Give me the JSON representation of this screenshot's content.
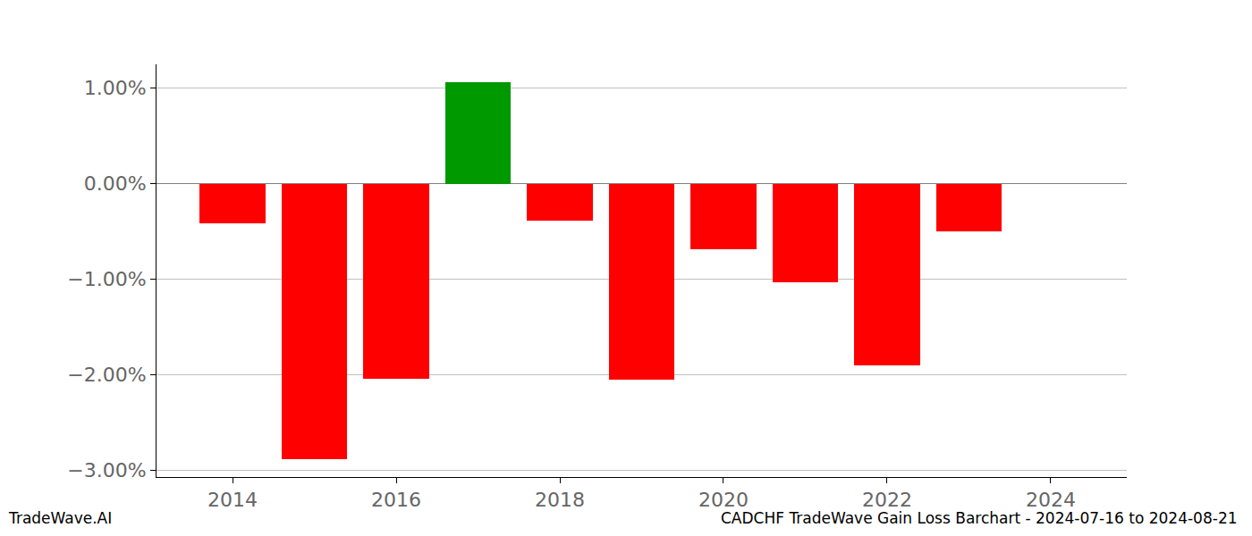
{
  "chart_data": {
    "type": "bar",
    "title": "CADCHF TradeWave Gain Loss Barchart - 2024-07-16 to 2024-08-21",
    "annotations": [
      "TradeWave.AI"
    ],
    "x": [
      2014,
      2015,
      2016,
      2017,
      2018,
      2019,
      2020,
      2021,
      2022,
      2023
    ],
    "values": [
      -0.41,
      -2.88,
      -2.04,
      1.06,
      -0.39,
      -2.05,
      -0.69,
      -1.03,
      -1.9,
      -0.5
    ],
    "colors": [
      "#ff0000",
      "#ff0000",
      "#ff0000",
      "#009900",
      "#ff0000",
      "#ff0000",
      "#ff0000",
      "#ff0000",
      "#ff0000",
      "#ff0000"
    ],
    "xlim": [
      2013.07,
      2024.93
    ],
    "xticks": [
      2014,
      2016,
      2018,
      2020,
      2022,
      2024
    ],
    "ylim": [
      -3.07,
      1.25
    ],
    "yticks": [
      {
        "value": 1,
        "label": "1.00%"
      },
      {
        "value": 0,
        "label": "0.00%"
      },
      {
        "value": -1,
        "label": "−1.00%"
      },
      {
        "value": -2,
        "label": "−2.00%"
      },
      {
        "value": -3,
        "label": "−3.00%"
      }
    ],
    "grid": true
  }
}
